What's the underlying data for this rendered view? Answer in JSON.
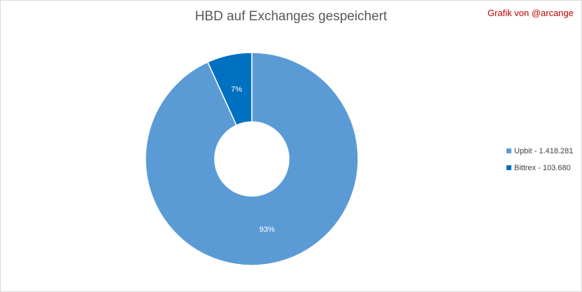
{
  "credit": "Grafik von @arcange",
  "chart_data": {
    "type": "pie",
    "variant": "donut",
    "title": "HBD auf Exchanges gespeichert",
    "categories": [
      "Upbit",
      "Bittrex"
    ],
    "values": [
      1418281,
      103680
    ],
    "percent_labels": [
      "93%",
      "7%"
    ],
    "legend_labels": [
      "Upbit - 1.418.281",
      "Bittrex - 103.680"
    ],
    "colors": [
      "#5b9bd5",
      "#0070c0"
    ],
    "label_colors": [
      "#ffffff",
      "#ffffff"
    ],
    "legend_position": "right"
  }
}
